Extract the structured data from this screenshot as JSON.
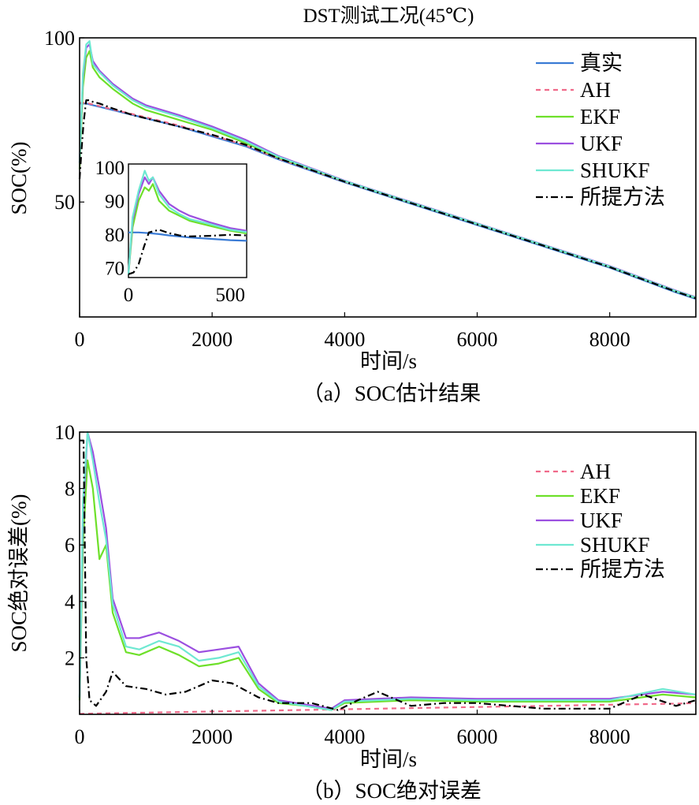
{
  "chart_data": [
    {
      "type": "line",
      "title": "DST测试工况(45℃)",
      "caption": "（a）SOC估计结果",
      "xlabel": "时间/s",
      "ylabel": "SOC(%)",
      "xlim": [
        0,
        9300
      ],
      "ylim": [
        15,
        100
      ],
      "xticks": [
        "0",
        "2000",
        "4000",
        "6000",
        "8000"
      ],
      "yticks": [
        "50",
        "100"
      ],
      "legend": [
        "真实",
        "AH",
        "EKF",
        "UKF",
        "SHUKF",
        "所提方法"
      ],
      "series": [
        {
          "name": "真实",
          "color": "#3a7bd5",
          "dash": "",
          "x": [
            0,
            100,
            200,
            500,
            1000,
            1500,
            2000,
            2500,
            3000,
            4000,
            5000,
            6000,
            7000,
            8000,
            9000,
            9300
          ],
          "y": [
            80,
            80,
            79.5,
            78,
            75.5,
            73,
            70,
            67,
            63,
            56,
            49.5,
            43,
            36.5,
            30,
            22.5,
            20.5
          ]
        },
        {
          "name": "AH",
          "color": "#f06a8a",
          "dash": "6 5",
          "x": [
            0,
            100,
            200,
            500,
            1000,
            1500,
            2000,
            2500,
            3000,
            4000,
            5000,
            6000,
            7000,
            8000,
            9000,
            9300
          ],
          "y": [
            80.2,
            80.2,
            79.7,
            78.2,
            75.8,
            73.3,
            70.3,
            67.3,
            63.2,
            56.2,
            49.8,
            43.3,
            36.8,
            30.4,
            23,
            21
          ]
        },
        {
          "name": "EKF",
          "color": "#6ee02a",
          "dash": "",
          "x": [
            0,
            50,
            100,
            150,
            200,
            300,
            500,
            800,
            1000,
            1500,
            2000,
            2500,
            3000,
            4000,
            5000,
            6000,
            7000,
            8000,
            9000,
            9300
          ],
          "y": [
            60,
            85,
            94,
            96,
            91,
            88,
            84.5,
            80,
            78,
            75,
            72,
            68,
            63.5,
            56.3,
            49.8,
            43.3,
            36.8,
            30.3,
            22.8,
            20.8
          ]
        },
        {
          "name": "UKF",
          "color": "#9b4fe0",
          "dash": "",
          "x": [
            0,
            50,
            100,
            150,
            200,
            300,
            500,
            800,
            1000,
            1500,
            2000,
            2500,
            3000,
            4000,
            5000,
            6000,
            7000,
            8000,
            9000,
            9300
          ],
          "y": [
            62,
            88,
            97,
            98,
            93,
            90,
            86,
            81.5,
            79.5,
            76.5,
            73,
            69,
            64,
            56.5,
            50,
            43.5,
            37,
            30.5,
            23,
            21
          ]
        },
        {
          "name": "SHUKF",
          "color": "#6ee8d2",
          "dash": "",
          "x": [
            0,
            50,
            100,
            150,
            200,
            300,
            500,
            800,
            1000,
            1500,
            2000,
            2500,
            3000,
            4000,
            5000,
            6000,
            7000,
            8000,
            9000,
            9300
          ],
          "y": [
            62,
            89,
            98,
            99,
            92,
            89.5,
            85.5,
            81,
            79,
            76,
            72.5,
            68.5,
            63.8,
            56.4,
            49.9,
            43.4,
            36.9,
            30.4,
            22.9,
            20.9
          ]
        },
        {
          "name": "所提方法",
          "color": "#000000",
          "dash": "9 4 2 4",
          "x": [
            0,
            30,
            60,
            100,
            150,
            200,
            300,
            500,
            800,
            1000,
            1500,
            2000,
            2500,
            3000,
            4000,
            5000,
            6000,
            7000,
            8000,
            9000,
            9300
          ],
          "y": [
            57,
            66,
            74,
            81,
            81,
            80.5,
            80,
            78.5,
            76.5,
            75.5,
            73,
            70.5,
            67.5,
            63.3,
            56.2,
            49.7,
            43.2,
            36.7,
            30.2,
            22.7,
            20.7
          ]
        }
      ],
      "inset": {
        "xlim": [
          0,
          580
        ],
        "ylim": [
          67,
          101
        ],
        "xticks": [
          "0",
          "500"
        ],
        "yticks": [
          "70",
          "80",
          "90",
          "100"
        ],
        "series": [
          {
            "name": "真实",
            "x": [
              0,
              50,
              100,
              150,
              200,
              300,
              400,
              500,
              580
            ],
            "y": [
              80.5,
              80.5,
              80.3,
              80,
              79.6,
              79,
              78.6,
              78.2,
              78
            ]
          },
          {
            "name": "EKF",
            "x": [
              0,
              20,
              50,
              80,
              100,
              120,
              150,
              200,
              250,
              300,
              400,
              500,
              580
            ],
            "y": [
              68,
              82,
              90,
              94,
              93,
              95,
              90,
              87,
              85.5,
              84,
              82.5,
              81,
              80.2
            ]
          },
          {
            "name": "UKF",
            "x": [
              0,
              20,
              50,
              80,
              100,
              120,
              150,
              200,
              250,
              300,
              400,
              500,
              580
            ],
            "y": [
              68,
              84,
              92,
              97,
              95,
              97,
              93,
              89,
              87,
              85.5,
              83.5,
              81.8,
              81
            ]
          },
          {
            "name": "SHUKF",
            "x": [
              0,
              20,
              50,
              80,
              100,
              120,
              150,
              200,
              250,
              300,
              400,
              500,
              580
            ],
            "y": [
              68,
              85,
              93,
              99,
              96,
              97,
              92,
              88,
              86,
              84.5,
              83,
              81.3,
              80.6
            ]
          },
          {
            "name": "所提方法",
            "x": [
              0,
              25,
              50,
              75,
              100,
              150,
              200,
              250,
              300,
              400,
              500,
              580
            ],
            "y": [
              68,
              68.5,
              71,
              76,
              80.5,
              81.3,
              80.3,
              79.6,
              79.3,
              79.5,
              79.8,
              79.6
            ]
          }
        ]
      }
    },
    {
      "type": "line",
      "caption": "（b）SOC绝对误差",
      "xlabel": "时间/s",
      "ylabel": "SOC绝对误差(%)",
      "xlim": [
        0,
        9300
      ],
      "ylim": [
        0,
        10
      ],
      "xticks": [
        "0",
        "2000",
        "4000",
        "6000",
        "8000"
      ],
      "yticks": [
        "2",
        "4",
        "6",
        "8",
        "10"
      ],
      "legend": [
        "AH",
        "EKF",
        "UKF",
        "SHUKF",
        "所提方法"
      ],
      "series": [
        {
          "name": "AH",
          "color": "#f06a8a",
          "dash": "6 5",
          "x": [
            0,
            500,
            1000,
            2000,
            3000,
            4000,
            5000,
            6000,
            7000,
            8000,
            9000,
            9300
          ],
          "y": [
            0.02,
            0.04,
            0.06,
            0.1,
            0.14,
            0.18,
            0.22,
            0.26,
            0.3,
            0.34,
            0.38,
            0.4
          ]
        },
        {
          "name": "EKF",
          "color": "#6ee02a",
          "dash": "",
          "x": [
            0,
            50,
            120,
            200,
            300,
            400,
            500,
            700,
            900,
            1200,
            1500,
            1800,
            2100,
            2400,
            2700,
            3000,
            3400,
            3800,
            4000,
            5000,
            6000,
            7000,
            8000,
            8800,
            9300
          ],
          "y": [
            0.5,
            6,
            9,
            8,
            5.5,
            6,
            3.6,
            2.2,
            2.1,
            2.4,
            2.1,
            1.7,
            1.8,
            2.0,
            0.9,
            0.4,
            0.3,
            0.15,
            0.4,
            0.5,
            0.45,
            0.45,
            0.45,
            0.7,
            0.6
          ]
        },
        {
          "name": "UKF",
          "color": "#9b4fe0",
          "dash": "",
          "x": [
            0,
            50,
            120,
            200,
            300,
            400,
            500,
            700,
            900,
            1200,
            1500,
            1800,
            2100,
            2400,
            2700,
            3000,
            3400,
            3800,
            4000,
            5000,
            6000,
            7000,
            8000,
            8800,
            9300
          ],
          "y": [
            0.6,
            7,
            10,
            9.3,
            8,
            6.6,
            4.1,
            2.7,
            2.7,
            2.9,
            2.6,
            2.2,
            2.3,
            2.4,
            1.1,
            0.5,
            0.35,
            0.2,
            0.5,
            0.6,
            0.55,
            0.55,
            0.55,
            0.8,
            0.7
          ]
        },
        {
          "name": "SHUKF",
          "color": "#6ee8d2",
          "dash": "",
          "x": [
            0,
            50,
            120,
            200,
            300,
            400,
            500,
            700,
            900,
            1200,
            1500,
            1800,
            2100,
            2400,
            2700,
            3000,
            3400,
            3800,
            4000,
            5000,
            6000,
            7000,
            8000,
            8800,
            9300
          ],
          "y": [
            0.6,
            7.5,
            10,
            9,
            7.5,
            6.2,
            3.9,
            2.4,
            2.3,
            2.6,
            2.4,
            1.9,
            2.0,
            2.2,
            1.0,
            0.45,
            0.3,
            0.15,
            0.45,
            0.55,
            0.5,
            0.5,
            0.5,
            0.9,
            0.7
          ]
        },
        {
          "name": "所提方法",
          "color": "#000000",
          "dash": "9 4 2 4",
          "x": [
            0,
            60,
            100,
            150,
            250,
            400,
            500,
            700,
            1000,
            1300,
            1600,
            2000,
            2300,
            2700,
            3000,
            3500,
            3900,
            4200,
            4500,
            5000,
            5500,
            6000,
            6500,
            7000,
            7500,
            8000,
            8500,
            9000,
            9300
          ],
          "y": [
            9.7,
            9.7,
            2,
            0.5,
            0.3,
            0.8,
            1.5,
            1.0,
            0.9,
            0.7,
            0.8,
            1.2,
            1.1,
            0.6,
            0.4,
            0.4,
            0.15,
            0.5,
            0.8,
            0.3,
            0.4,
            0.4,
            0.3,
            0.2,
            0.2,
            0.2,
            0.7,
            0.3,
            0.5
          ]
        }
      ]
    }
  ]
}
